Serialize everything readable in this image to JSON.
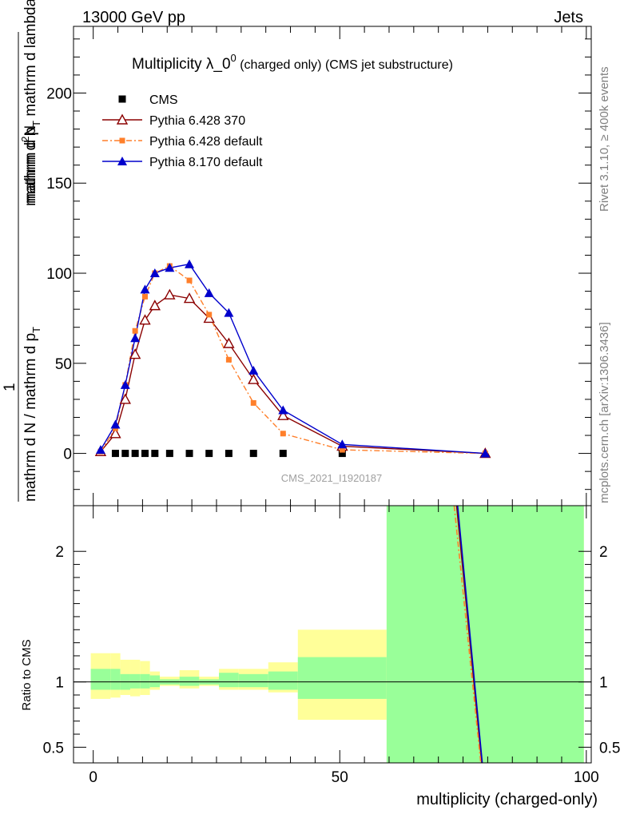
{
  "header": {
    "left": "13000 GeV pp",
    "right": "Jets"
  },
  "side": {
    "rivet": "Rivet 3.1.10, ≥ 400k events",
    "mcplots": "mcplots.cern.ch [arXiv:1306.3436]"
  },
  "chart_data": [
    {
      "type": "line",
      "title_main": "Multiplicity λ_0",
      "title_sup": "0",
      "title_small": " (charged only) (CMS jet substructure)",
      "watermark": "CMS_2021_I1920187",
      "ylabel_numer": "mathrm d",
      "ylabel_numer_sup": "2",
      "ylabel_numer_N": "N",
      "ylabel_denom": "mathrm d p",
      "ylabel_denom_sub": "T",
      "ylabel_denom2": " mathrm d lambda",
      "ylabel_one": "1",
      "ylabel_bottom": "mathrm d N / mathrm d p",
      "ylabel_bottom_sub": "T",
      "xlim": [
        -4,
        101
      ],
      "ylim": [
        -29,
        237
      ],
      "yticks": [
        {
          "v": 0,
          "label": "0"
        },
        {
          "v": 50,
          "label": "50"
        },
        {
          "v": 100,
          "label": "100"
        },
        {
          "v": 150,
          "label": "150"
        },
        {
          "v": 200,
          "label": "200"
        }
      ],
      "legend_position": "top-left",
      "series": [
        {
          "name": "CMS",
          "color": "#000000",
          "marker": "square",
          "x": [
            4.5,
            6.5,
            8.5,
            10.5,
            12.5,
            15.5,
            19.5,
            23.5,
            27.5,
            32.5,
            38.5,
            50.5
          ],
          "y": [
            0,
            0,
            0,
            0,
            0,
            0,
            0,
            0,
            0,
            0,
            0,
            0
          ]
        },
        {
          "name": "Pythia 6.428 370",
          "color": "#8b0000",
          "marker": "open-triangle",
          "dash": "",
          "x": [
            1.5,
            4.5,
            6.5,
            8.5,
            10.5,
            12.5,
            15.5,
            19.5,
            23.5,
            27.5,
            32.5,
            38.5,
            50.5,
            79.5
          ],
          "y": [
            1,
            11,
            30,
            55,
            74,
            82,
            88,
            86,
            75,
            61,
            41,
            21,
            4,
            0
          ]
        },
        {
          "name": "Pythia 6.428 default",
          "color": "#ff7f2a",
          "marker": "square-small",
          "dash": "7,3,2,3",
          "x": [
            1.5,
            4.5,
            6.5,
            8.5,
            10.5,
            12.5,
            15.5,
            19.5,
            23.5,
            27.5,
            32.5,
            38.5,
            50.5,
            79.5
          ],
          "y": [
            1,
            14,
            38,
            68,
            87,
            100,
            104,
            96,
            77,
            52,
            28,
            11,
            2,
            0
          ]
        },
        {
          "name": "Pythia 8.170 default",
          "color": "#0000cc",
          "marker": "filled-triangle",
          "dash": "",
          "x": [
            1.5,
            4.5,
            6.5,
            8.5,
            10.5,
            12.5,
            15.5,
            19.5,
            23.5,
            27.5,
            32.5,
            38.5,
            50.5,
            79.5
          ],
          "y": [
            2,
            16,
            38,
            64,
            91,
            100,
            103,
            105,
            89,
            78,
            46,
            24,
            5,
            0
          ]
        }
      ]
    },
    {
      "type": "line",
      "ylabel": "Ratio to CMS",
      "xlabel": "multiplicity (charged-only)",
      "xlim": [
        -4,
        101
      ],
      "ylim": [
        0.38,
        2.35
      ],
      "yticks": [
        {
          "v": 0.5,
          "label": "0.5"
        },
        {
          "v": 1,
          "label": "1"
        },
        {
          "v": 2,
          "label": "2"
        }
      ],
      "xticks": [
        {
          "v": 0,
          "label": "0"
        },
        {
          "v": 50,
          "label": "50"
        },
        {
          "v": 100,
          "label": "100"
        }
      ],
      "bands": [
        {
          "x0": -0.5,
          "x1": 3.5,
          "lo_y": 0.87,
          "hi_y": 1.22,
          "lo_g": 0.94,
          "hi_g": 1.1
        },
        {
          "x0": 3.5,
          "x1": 5.5,
          "lo_y": 0.88,
          "hi_y": 1.22,
          "lo_g": 0.94,
          "hi_g": 1.1
        },
        {
          "x0": 5.5,
          "x1": 7.5,
          "lo_y": 0.9,
          "hi_y": 1.17,
          "lo_g": 0.94,
          "hi_g": 1.06
        },
        {
          "x0": 7.5,
          "x1": 9.5,
          "lo_y": 0.89,
          "hi_y": 1.17,
          "lo_g": 0.95,
          "hi_g": 1.06
        },
        {
          "x0": 9.5,
          "x1": 11.5,
          "lo_y": 0.9,
          "hi_y": 1.16,
          "lo_g": 0.95,
          "hi_g": 1.06
        },
        {
          "x0": 11.5,
          "x1": 13.5,
          "lo_y": 0.94,
          "hi_y": 1.08,
          "lo_g": 0.96,
          "hi_g": 1.05
        },
        {
          "x0": 13.5,
          "x1": 17.5,
          "lo_y": 0.97,
          "hi_y": 1.04,
          "lo_g": 0.98,
          "hi_g": 1.02
        },
        {
          "x0": 17.5,
          "x1": 21.5,
          "lo_y": 0.95,
          "hi_y": 1.09,
          "lo_g": 0.97,
          "hi_g": 1.04
        },
        {
          "x0": 21.5,
          "x1": 25.5,
          "lo_y": 0.97,
          "hi_y": 1.04,
          "lo_g": 0.98,
          "hi_g": 1.02
        },
        {
          "x0": 25.5,
          "x1": 29.5,
          "lo_y": 0.94,
          "hi_y": 1.1,
          "lo_g": 0.96,
          "hi_g": 1.07
        },
        {
          "x0": 29.5,
          "x1": 35.5,
          "lo_y": 0.94,
          "hi_y": 1.1,
          "lo_g": 0.96,
          "hi_g": 1.06
        },
        {
          "x0": 35.5,
          "x1": 41.5,
          "lo_y": 0.92,
          "hi_y": 1.15,
          "lo_g": 0.94,
          "hi_g": 1.08
        },
        {
          "x0": 41.5,
          "x1": 59.5,
          "lo_y": 0.71,
          "hi_y": 1.4,
          "lo_g": 0.87,
          "hi_g": 1.19
        },
        {
          "x0": 59.5,
          "x1": 99.5,
          "lo_y": 0.38,
          "hi_y": 2.35,
          "lo_g": 0.38,
          "hi_g": 2.35
        }
      ],
      "ratio_lines": [
        {
          "name": "Pythia 6.428 370",
          "color": "#8b0000",
          "dash": "",
          "x": [
            73.7,
            78.8
          ],
          "y": [
            2.35,
            0.38
          ]
        },
        {
          "name": "Pythia 6.428 default",
          "color": "#ff7f2a",
          "dash": "7,3,2,3",
          "x": [
            73.2,
            78.6
          ],
          "y": [
            2.35,
            0.38
          ]
        },
        {
          "name": "Pythia 8.170 default",
          "color": "#0000cc",
          "dash": "",
          "x": [
            73.9,
            78.9
          ],
          "y": [
            2.35,
            0.38
          ]
        }
      ]
    }
  ],
  "colors": {
    "band_yellow": "#ffff99",
    "band_green": "#99ff99"
  }
}
